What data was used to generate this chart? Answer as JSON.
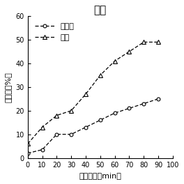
{
  "title": "牛肉",
  "xlabel": "酶解时间（min）",
  "ylabel": "水解度（%）",
  "xlim": [
    0,
    100
  ],
  "ylim": [
    0,
    60
  ],
  "xticks": [
    0,
    10,
    20,
    30,
    40,
    50,
    60,
    70,
    80,
    90,
    100
  ],
  "yticks": [
    0,
    10,
    20,
    30,
    40,
    50,
    60
  ],
  "unirradiated_x": [
    0,
    10,
    20,
    30,
    40,
    50,
    60,
    70,
    80,
    90
  ],
  "unirradiated_y": [
    2.0,
    3.5,
    10.0,
    10.0,
    13.0,
    16.0,
    19.0,
    21.0,
    23.0,
    25.0
  ],
  "irradiated_x": [
    0,
    10,
    20,
    30,
    40,
    50,
    60,
    70,
    80,
    90
  ],
  "irradiated_y": [
    6.0,
    13.0,
    18.0,
    20.0,
    27.0,
    35.0,
    41.0,
    45.0,
    49.0,
    49.0
  ],
  "legend_unirradiated": "未辐射",
  "legend_irradiated": "辐射",
  "line_color": "black",
  "bg_color": "white",
  "title_fontsize": 11,
  "label_fontsize": 8,
  "tick_fontsize": 7,
  "legend_fontsize": 8
}
